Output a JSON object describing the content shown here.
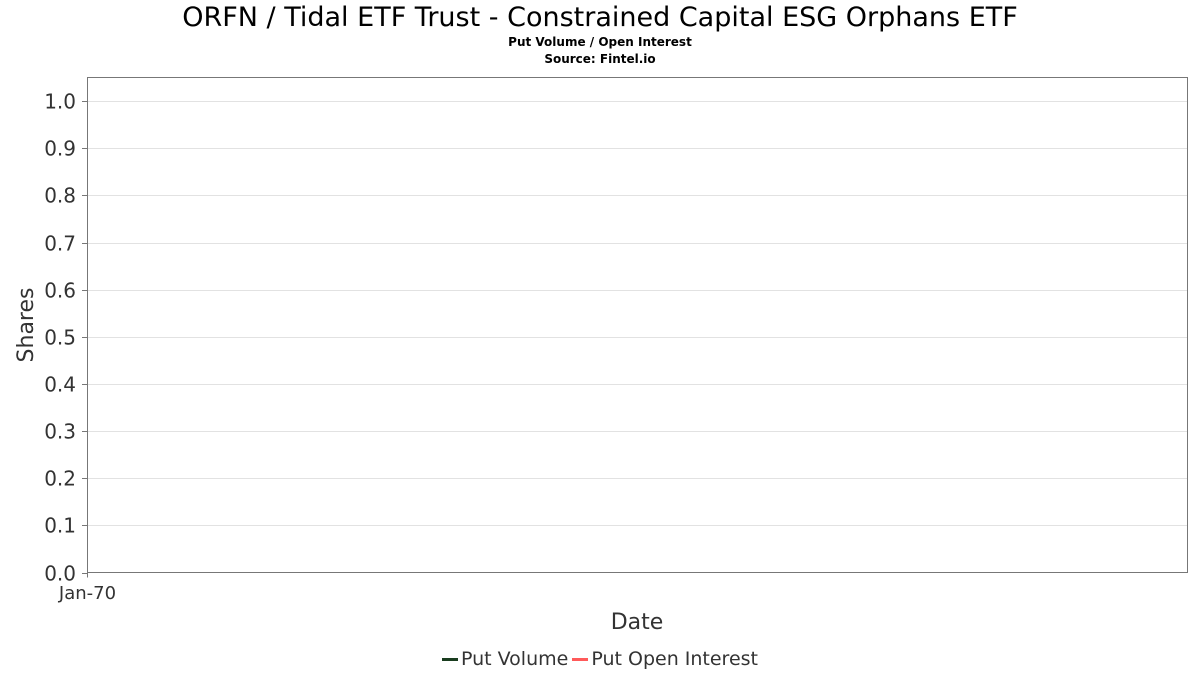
{
  "chart_data": {
    "type": "line",
    "title": "ORFN / Tidal ETF Trust - Constrained Capital ESG Orphans ETF",
    "subtitle": "Put Volume / Open Interest",
    "source": "Source: Fintel.io",
    "xlabel": "Date",
    "ylabel": "Shares",
    "x_tick_labels": [
      "Jan-70"
    ],
    "y_ticks": [
      0.0,
      0.1,
      0.2,
      0.3,
      0.4,
      0.5,
      0.6,
      0.7,
      0.8,
      0.9,
      1.0
    ],
    "y_tick_labels": [
      "0.0",
      "0.1",
      "0.2",
      "0.3",
      "0.4",
      "0.5",
      "0.6",
      "0.7",
      "0.8",
      "0.9",
      "1.0"
    ],
    "ylim": [
      0,
      1.05
    ],
    "grid": true,
    "legend_position": "bottom-center",
    "series": [
      {
        "name": "Put Volume",
        "color": "#1a3d1f",
        "values": []
      },
      {
        "name": "Put Open Interest",
        "color": "#ff5a5a",
        "values": []
      }
    ]
  }
}
